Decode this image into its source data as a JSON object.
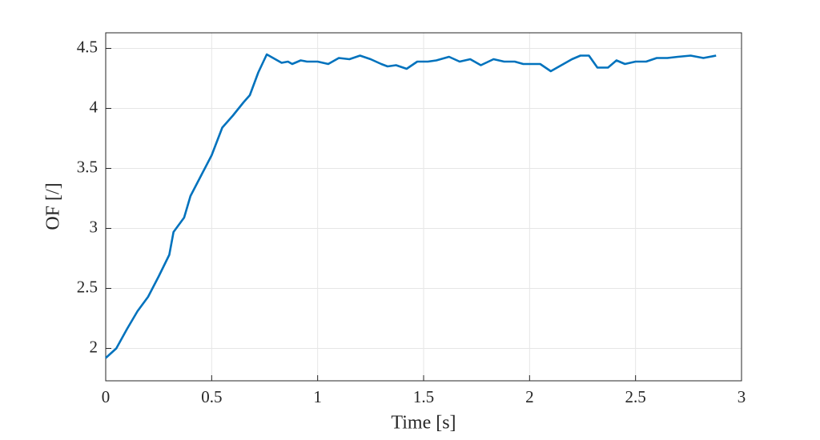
{
  "chart_data": {
    "type": "line",
    "x_label": "Time [s]",
    "y_label": "OF [/]",
    "x": [
      0,
      0.05,
      0.1,
      0.15,
      0.2,
      0.25,
      0.3,
      0.32,
      0.37,
      0.4,
      0.45,
      0.5,
      0.55,
      0.6,
      0.65,
      0.68,
      0.72,
      0.76,
      0.8,
      0.83,
      0.86,
      0.88,
      0.92,
      0.95,
      1.0,
      1.05,
      1.1,
      1.15,
      1.2,
      1.25,
      1.3,
      1.33,
      1.37,
      1.42,
      1.47,
      1.52,
      1.56,
      1.62,
      1.67,
      1.72,
      1.77,
      1.83,
      1.88,
      1.93,
      1.97,
      2.02,
      2.05,
      2.1,
      2.15,
      2.2,
      2.24,
      2.28,
      2.32,
      2.37,
      2.41,
      2.45,
      2.5,
      2.55,
      2.6,
      2.65,
      2.7,
      2.76,
      2.82,
      2.88
    ],
    "series": [
      {
        "color": "#0072bd",
        "values": [
          1.92,
          2.0,
          2.16,
          2.31,
          2.43,
          2.6,
          2.78,
          2.97,
          3.09,
          3.27,
          3.44,
          3.61,
          3.84,
          3.94,
          4.05,
          4.11,
          4.3,
          4.45,
          4.41,
          4.38,
          4.39,
          4.37,
          4.4,
          4.39,
          4.39,
          4.37,
          4.42,
          4.41,
          4.44,
          4.41,
          4.37,
          4.35,
          4.36,
          4.33,
          4.39,
          4.39,
          4.4,
          4.43,
          4.39,
          4.41,
          4.36,
          4.41,
          4.39,
          4.39,
          4.37,
          4.37,
          4.37,
          4.31,
          4.36,
          4.41,
          4.44,
          4.44,
          4.34,
          4.34,
          4.4,
          4.37,
          4.39,
          4.39,
          4.42,
          4.42,
          4.43,
          4.44,
          4.42,
          4.44
        ]
      }
    ],
    "xlim": [
      0,
      3
    ],
    "xticks": [
      0,
      0.5,
      1,
      1.5,
      2,
      2.5,
      3
    ],
    "ylim": [
      1.73,
      4.63
    ],
    "yticks": [
      2,
      2.5,
      3,
      3.5,
      4,
      4.5
    ],
    "grid": true
  }
}
